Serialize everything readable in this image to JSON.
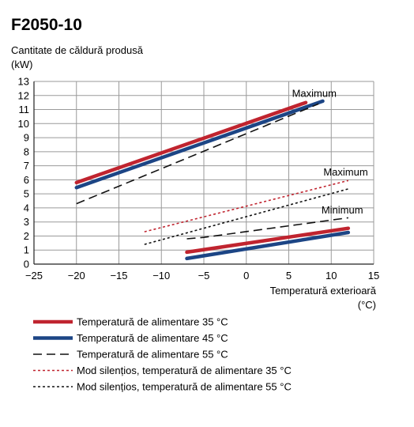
{
  "chart_data": {
    "type": "line",
    "title": "F2050-10",
    "ylabel_line1": "Cantitate de căldură produsă",
    "ylabel_line2": "(kW)",
    "xlabel_line1": "Temperatură exterioară",
    "xlabel_line2": "(°C)",
    "xlim": [
      -25,
      15
    ],
    "ylim": [
      0,
      13
    ],
    "xticks": [
      -25,
      -20,
      -15,
      -10,
      -5,
      0,
      5,
      10,
      15
    ],
    "xtick_labels": [
      "−25",
      "−20",
      "−15",
      "−10",
      "−5",
      "0",
      "5",
      "10",
      "15"
    ],
    "yticks": [
      0,
      1,
      2,
      3,
      4,
      5,
      6,
      7,
      8,
      9,
      10,
      11,
      12,
      13
    ],
    "grid": true,
    "legend_position": "bottom",
    "annotations": [
      {
        "text": "Maximum",
        "x": 8,
        "y": 11.9
      },
      {
        "text": "Maximum",
        "x": 11.7,
        "y": 6.3
      },
      {
        "text": "Minimum",
        "x": 11.3,
        "y": 3.6
      }
    ],
    "series": [
      {
        "name": "Temperatură de alimentare 35 °C",
        "color": "#c0242f",
        "style": "thick",
        "segments": [
          [
            [
              -20,
              5.8
            ],
            [
              7,
              11.5
            ]
          ],
          [
            [
              -7,
              0.85
            ],
            [
              12,
              2.55
            ]
          ]
        ]
      },
      {
        "name": "Temperatură de alimentare 45 °C",
        "color": "#1c4585",
        "style": "thick",
        "segments": [
          [
            [
              -20,
              5.45
            ],
            [
              9,
              11.6
            ]
          ],
          [
            [
              -7,
              0.4
            ],
            [
              12,
              2.25
            ]
          ]
        ]
      },
      {
        "name": "Temperatură de alimentare 55 °C",
        "color": "#111111",
        "style": "dashed",
        "segments": [
          [
            [
              -20,
              4.3
            ],
            [
              8.5,
              11.4
            ]
          ],
          [
            [
              -7,
              1.8
            ],
            [
              -5,
              1.9
            ],
            [
              12,
              3.3
            ]
          ]
        ]
      },
      {
        "name": "Mod silențios, temperatură de alimentare 35 °C",
        "color": "#c0242f",
        "style": "dotted",
        "segments": [
          [
            [
              -12,
              2.3
            ],
            [
              12,
              5.95
            ]
          ]
        ]
      },
      {
        "name": "Mod silențios, temperatură de alimentare 55 °C",
        "color": "#111111",
        "style": "dotted",
        "segments": [
          [
            [
              -12,
              1.4
            ],
            [
              12,
              5.35
            ]
          ]
        ]
      }
    ]
  }
}
